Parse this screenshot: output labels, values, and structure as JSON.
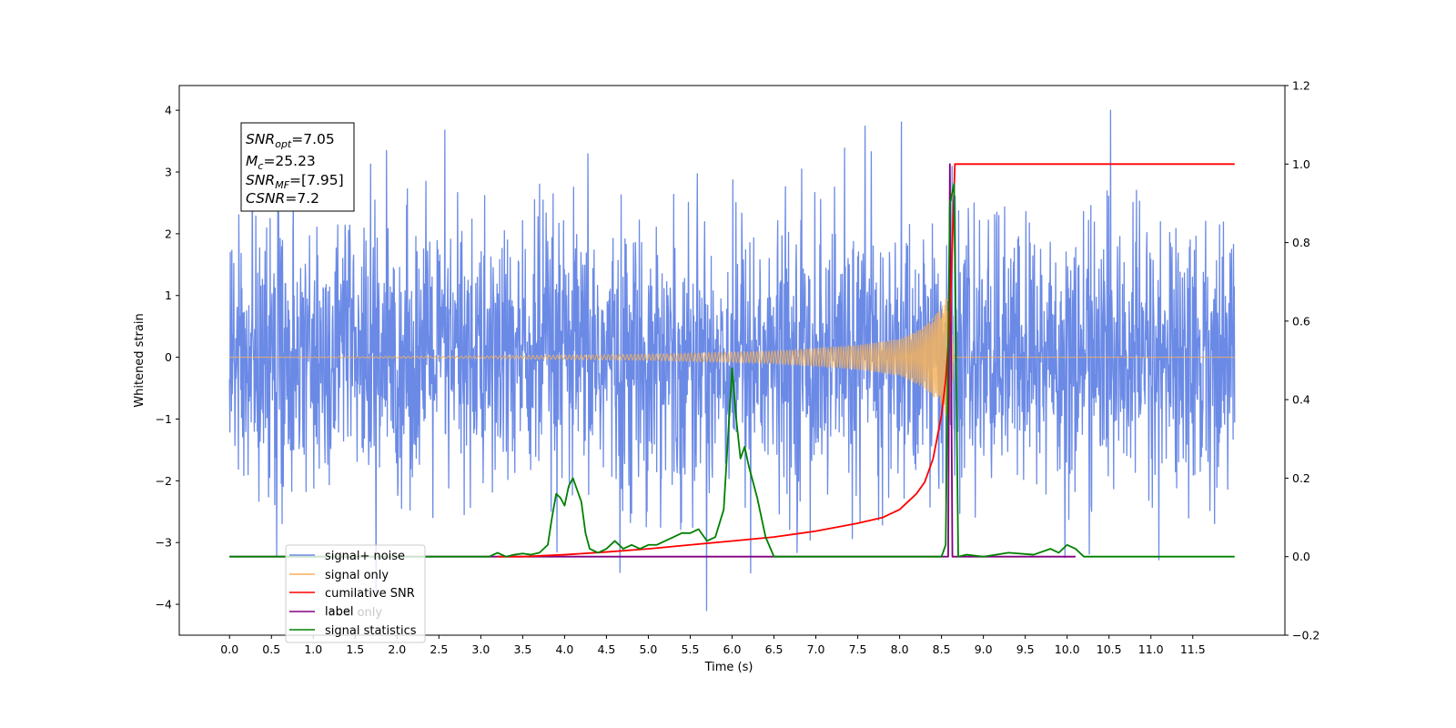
{
  "chart_data": {
    "type": "line",
    "xlabel": "Time (s)",
    "ylabel": "Whitened strain",
    "xlim": [
      -0.6,
      12.6
    ],
    "ylim": [
      -4.5,
      4.4
    ],
    "y2lim": [
      -0.2,
      1.2
    ],
    "x_ticks": [
      0.0,
      0.5,
      1.0,
      1.5,
      2.0,
      2.5,
      3.0,
      3.5,
      4.0,
      4.5,
      5.0,
      5.5,
      6.0,
      6.5,
      7.0,
      7.5,
      8.0,
      8.5,
      9.0,
      9.5,
      10.0,
      10.5,
      11.0,
      11.5
    ],
    "x_tick_labels": [
      "0.0",
      "0.5",
      "1.0",
      "1.5",
      "2.0",
      "2.5",
      "3.0",
      "3.5",
      "4.0",
      "4.5",
      "5.0",
      "5.5",
      "6.0",
      "6.5",
      "7.0",
      "7.5",
      "8.0",
      "8.5",
      "9.0",
      "9.5",
      "10.0",
      "10.5",
      "11.0",
      "11.5"
    ],
    "y_ticks": [
      -4,
      -3,
      -2,
      -1,
      0,
      1,
      2,
      3,
      4
    ],
    "y_tick_labels": [
      "−4",
      "−3",
      "−2",
      "−1",
      "0",
      "1",
      "2",
      "3",
      "4"
    ],
    "y2_ticks": [
      -0.2,
      0.0,
      0.2,
      0.4,
      0.6,
      0.8,
      1.0,
      1.2
    ],
    "y2_tick_labels": [
      "−0.2",
      "0.0",
      "0.2",
      "0.4",
      "0.6",
      "0.8",
      "1.0",
      "1.2"
    ],
    "grid": false,
    "legend_position": "lower-left",
    "series": [
      {
        "name": "signal+ noise",
        "color": "#6b8ae6",
        "axis": "left",
        "x_range": [
          0.0,
          12.0
        ],
        "amplitude_range": [
          -2.4,
          2.5
        ],
        "peak_range": [
          -4.1,
          4.0
        ]
      },
      {
        "name": "signal only",
        "color": "#f5b15c",
        "axis": "left",
        "envelope_points": [
          [
            0.0,
            0.0
          ],
          [
            3.0,
            0.02
          ],
          [
            5.0,
            0.05
          ],
          [
            6.5,
            0.1
          ],
          [
            7.5,
            0.2
          ],
          [
            8.0,
            0.3
          ],
          [
            8.3,
            0.5
          ],
          [
            8.5,
            0.8
          ],
          [
            8.6,
            1.2
          ],
          [
            8.65,
            0.0
          ],
          [
            12.0,
            0.0
          ]
        ]
      },
      {
        "name": "cumilative SNR",
        "color": "#ff0000",
        "axis": "right",
        "points": [
          [
            3.2,
            0.0
          ],
          [
            3.5,
            0.0
          ],
          [
            4.0,
            0.005
          ],
          [
            4.5,
            0.012
          ],
          [
            5.0,
            0.02
          ],
          [
            5.5,
            0.03
          ],
          [
            6.0,
            0.04
          ],
          [
            6.5,
            0.05
          ],
          [
            7.0,
            0.065
          ],
          [
            7.5,
            0.085
          ],
          [
            7.8,
            0.1
          ],
          [
            8.0,
            0.12
          ],
          [
            8.2,
            0.16
          ],
          [
            8.3,
            0.19
          ],
          [
            8.4,
            0.25
          ],
          [
            8.5,
            0.36
          ],
          [
            8.55,
            0.45
          ],
          [
            8.6,
            0.6
          ],
          [
            8.63,
            0.8
          ],
          [
            8.66,
            1.0
          ],
          [
            12.0,
            1.0
          ]
        ]
      },
      {
        "name": "label",
        "color": "#800080",
        "axis": "right",
        "points": [
          [
            0.0,
            0.0
          ],
          [
            8.58,
            0.0
          ],
          [
            8.6,
            1.0
          ],
          [
            8.63,
            0.0
          ],
          [
            10.1,
            0.0
          ]
        ]
      },
      {
        "name": "label only",
        "color": "#7f7f7f",
        "axis": "right",
        "points": []
      },
      {
        "name": "signal statistics",
        "color": "#008000",
        "axis": "right",
        "points": [
          [
            0.0,
            0.0
          ],
          [
            3.0,
            0.0
          ],
          [
            3.1,
            0.0
          ],
          [
            3.2,
            0.01
          ],
          [
            3.3,
            0.0
          ],
          [
            3.4,
            0.005
          ],
          [
            3.5,
            0.008
          ],
          [
            3.6,
            0.005
          ],
          [
            3.7,
            0.01
          ],
          [
            3.8,
            0.03
          ],
          [
            3.85,
            0.1
          ],
          [
            3.9,
            0.16
          ],
          [
            3.95,
            0.15
          ],
          [
            4.0,
            0.13
          ],
          [
            4.05,
            0.18
          ],
          [
            4.1,
            0.2
          ],
          [
            4.15,
            0.17
          ],
          [
            4.2,
            0.14
          ],
          [
            4.25,
            0.06
          ],
          [
            4.3,
            0.02
          ],
          [
            4.4,
            0.01
          ],
          [
            4.5,
            0.02
          ],
          [
            4.6,
            0.04
          ],
          [
            4.7,
            0.02
          ],
          [
            4.8,
            0.03
          ],
          [
            4.9,
            0.02
          ],
          [
            5.0,
            0.03
          ],
          [
            5.1,
            0.03
          ],
          [
            5.2,
            0.04
          ],
          [
            5.3,
            0.05
          ],
          [
            5.4,
            0.06
          ],
          [
            5.5,
            0.06
          ],
          [
            5.6,
            0.07
          ],
          [
            5.7,
            0.04
          ],
          [
            5.8,
            0.05
          ],
          [
            5.9,
            0.12
          ],
          [
            6.0,
            0.48
          ],
          [
            6.05,
            0.35
          ],
          [
            6.1,
            0.25
          ],
          [
            6.15,
            0.28
          ],
          [
            6.2,
            0.23
          ],
          [
            6.3,
            0.15
          ],
          [
            6.4,
            0.05
          ],
          [
            6.5,
            0.0
          ],
          [
            6.6,
            0.0
          ],
          [
            7.0,
            0.0
          ],
          [
            8.0,
            0.0
          ],
          [
            8.4,
            0.0
          ],
          [
            8.5,
            0.0
          ],
          [
            8.55,
            0.03
          ],
          [
            8.6,
            0.9
          ],
          [
            8.65,
            0.95
          ],
          [
            8.7,
            0.0
          ],
          [
            8.8,
            0.005
          ],
          [
            9.0,
            0.0
          ],
          [
            9.3,
            0.01
          ],
          [
            9.6,
            0.005
          ],
          [
            9.8,
            0.02
          ],
          [
            9.9,
            0.01
          ],
          [
            10.0,
            0.03
          ],
          [
            10.1,
            0.02
          ],
          [
            10.2,
            0.0
          ],
          [
            12.0,
            0.0
          ]
        ]
      }
    ]
  },
  "annotation": {
    "lines": [
      {
        "main": "SNR",
        "sub": "opt",
        "value": "=7.05"
      },
      {
        "main": "M",
        "sub": "c",
        "value": "=25.23"
      },
      {
        "main": "SNR",
        "sub": "MF",
        "value": "=[7.95]"
      },
      {
        "main": "CSNR",
        "sub": "",
        "value": "=7.2"
      }
    ]
  }
}
